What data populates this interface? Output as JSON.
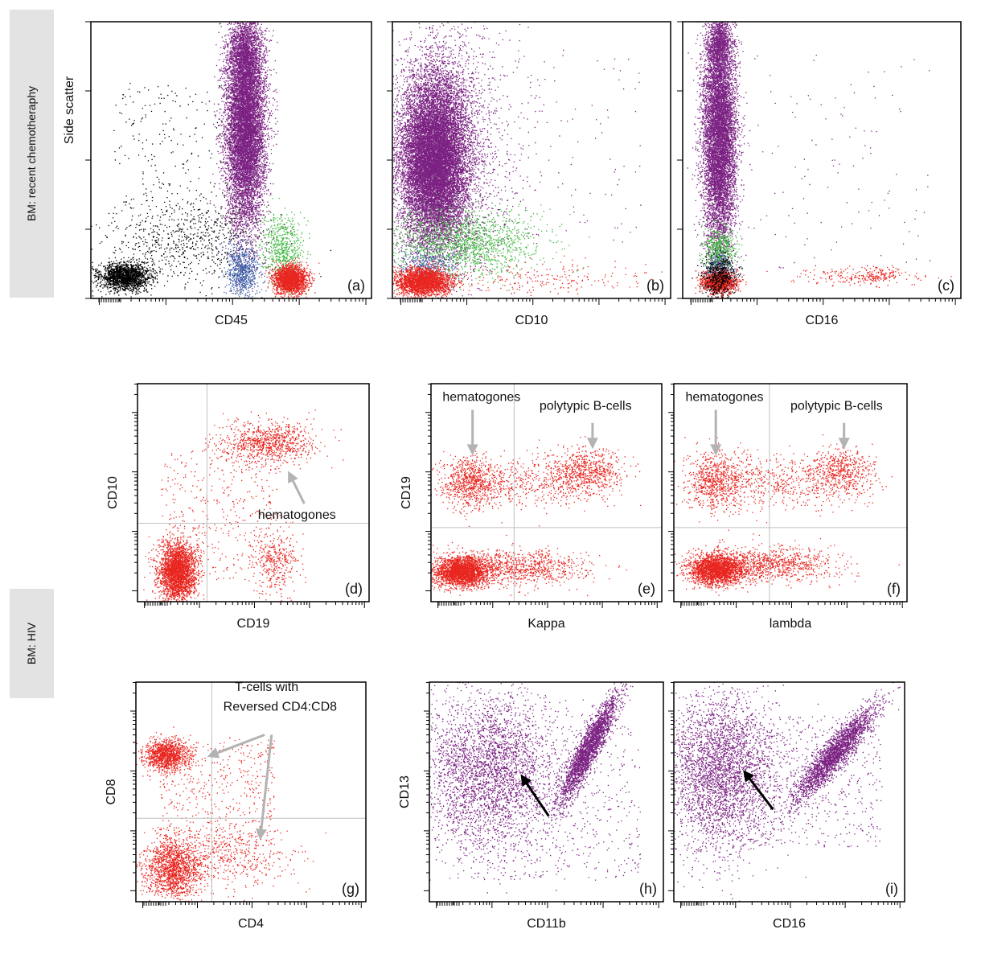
{
  "row_labels": {
    "top": "BM: recent chemotheraphy",
    "bottom": "BM: HIV"
  },
  "colors": {
    "granulocytes": "#7B2182",
    "lymphocytes": "#E8251F",
    "monocytes": "#3FB83F",
    "blasts": "#3D5CA8",
    "debris": "#000000",
    "gate": "#bfbfbf",
    "annotation_arrow": "#b3b3b3"
  },
  "chart_data": [
    {
      "id": "a",
      "type": "scatter",
      "panel_label": "(a)",
      "xlabel": "CD45",
      "ylabel": "Side scatter",
      "x_scale": "log",
      "y_scale": "linear",
      "gates": [],
      "populations": [
        {
          "color": "granulocytes",
          "cx": 0.55,
          "cy": 0.62,
          "sx": 0.035,
          "sy": 0.18,
          "n": 9000,
          "shape": "ellipse"
        },
        {
          "color": "granulocytes",
          "cx": 0.55,
          "cy": 0.88,
          "sx": 0.03,
          "sy": 0.08,
          "n": 1500,
          "shape": "ellipse"
        },
        {
          "color": "debris",
          "cx": 0.12,
          "cy": 0.08,
          "sx": 0.045,
          "sy": 0.025,
          "n": 1800,
          "shape": "ellipse"
        },
        {
          "color": "debris",
          "cx": 0.35,
          "cy": 0.2,
          "sx": 0.15,
          "sy": 0.08,
          "n": 700,
          "shape": "ellipse"
        },
        {
          "color": "debris",
          "cx": 0.3,
          "cy": 0.5,
          "sx": 0.22,
          "sy": 0.28,
          "n": 250,
          "shape": "uniform"
        },
        {
          "color": "blasts",
          "cx": 0.54,
          "cy": 0.1,
          "sx": 0.03,
          "sy": 0.05,
          "n": 700,
          "shape": "ellipse"
        },
        {
          "color": "monocytes",
          "cx": 0.68,
          "cy": 0.18,
          "sx": 0.035,
          "sy": 0.06,
          "n": 600,
          "shape": "ellipse"
        },
        {
          "color": "lymphocytes",
          "cx": 0.71,
          "cy": 0.07,
          "sx": 0.03,
          "sy": 0.025,
          "n": 2000,
          "shape": "ellipse"
        }
      ]
    },
    {
      "id": "b",
      "type": "scatter",
      "panel_label": "(b)",
      "xlabel": "CD10",
      "ylabel": "",
      "x_scale": "log",
      "y_scale": "linear",
      "gates": [],
      "populations": [
        {
          "color": "granulocytes",
          "cx": 0.15,
          "cy": 0.5,
          "sx": 0.06,
          "sy": 0.15,
          "n": 14000,
          "shape": "ellipse"
        },
        {
          "color": "granulocytes",
          "cx": 0.2,
          "cy": 0.55,
          "sx": 0.12,
          "sy": 0.25,
          "n": 2000,
          "shape": "ellipse"
        },
        {
          "color": "monocytes",
          "cx": 0.25,
          "cy": 0.2,
          "sx": 0.14,
          "sy": 0.06,
          "n": 1600,
          "shape": "ellipse"
        },
        {
          "color": "blasts",
          "cx": 0.12,
          "cy": 0.12,
          "sx": 0.05,
          "sy": 0.03,
          "n": 300,
          "shape": "ellipse"
        },
        {
          "color": "lymphocytes",
          "cx": 0.11,
          "cy": 0.06,
          "sx": 0.05,
          "sy": 0.025,
          "n": 2600,
          "shape": "ellipse"
        },
        {
          "color": "lymphocytes",
          "cx": 0.55,
          "cy": 0.07,
          "sx": 0.2,
          "sy": 0.03,
          "n": 220,
          "shape": "ellipse"
        },
        {
          "color": "granulocytes",
          "cx": 0.55,
          "cy": 0.55,
          "sx": 0.35,
          "sy": 0.35,
          "n": 150,
          "shape": "uniform"
        }
      ]
    },
    {
      "id": "c",
      "type": "scatter",
      "panel_label": "(c)",
      "xlabel": "CD16",
      "ylabel": "",
      "x_scale": "log",
      "y_scale": "linear",
      "gates": [],
      "populations": [
        {
          "color": "granulocytes",
          "cx": 0.13,
          "cy": 0.58,
          "sx": 0.03,
          "sy": 0.2,
          "n": 8000,
          "shape": "ellipse"
        },
        {
          "color": "granulocytes",
          "cx": 0.13,
          "cy": 0.92,
          "sx": 0.02,
          "sy": 0.05,
          "n": 900,
          "shape": "ellipse"
        },
        {
          "color": "monocytes",
          "cx": 0.13,
          "cy": 0.18,
          "sx": 0.03,
          "sy": 0.04,
          "n": 500,
          "shape": "ellipse"
        },
        {
          "color": "blasts",
          "cx": 0.13,
          "cy": 0.1,
          "sx": 0.025,
          "sy": 0.03,
          "n": 300,
          "shape": "ellipse"
        },
        {
          "color": "lymphocytes",
          "cx": 0.13,
          "cy": 0.06,
          "sx": 0.03,
          "sy": 0.02,
          "n": 1200,
          "shape": "ellipse"
        },
        {
          "color": "debris",
          "cx": 0.13,
          "cy": 0.08,
          "sx": 0.03,
          "sy": 0.04,
          "n": 500,
          "shape": "ellipse"
        },
        {
          "color": "lymphocytes",
          "cx": 0.63,
          "cy": 0.08,
          "sx": 0.12,
          "sy": 0.015,
          "n": 180,
          "shape": "ellipse"
        },
        {
          "color": "lymphocytes",
          "cx": 0.7,
          "cy": 0.09,
          "sx": 0.03,
          "sy": 0.015,
          "n": 100,
          "shape": "ellipse"
        },
        {
          "color": "granulocytes",
          "cx": 0.55,
          "cy": 0.5,
          "sx": 0.35,
          "sy": 0.4,
          "n": 120,
          "shape": "uniform"
        }
      ]
    },
    {
      "id": "d",
      "type": "scatter",
      "panel_label": "(d)",
      "xlabel": "CD19",
      "ylabel": "CD10",
      "x_scale": "log",
      "y_scale": "log",
      "gates": [
        {
          "x": 0.3
        },
        {
          "y": 0.36
        }
      ],
      "annotations": [
        {
          "text": "hematogones",
          "arrow_to": [
            0.65,
            0.6
          ],
          "arrow_from": [
            0.72,
            0.45
          ],
          "text_at": [
            0.52,
            0.38
          ]
        }
      ],
      "populations": [
        {
          "color": "lymphocytes",
          "cx": 0.17,
          "cy": 0.14,
          "sx": 0.04,
          "sy": 0.07,
          "n": 2800,
          "shape": "ellipse"
        },
        {
          "color": "lymphocytes",
          "cx": 0.57,
          "cy": 0.73,
          "sx": 0.1,
          "sy": 0.05,
          "n": 900,
          "shape": "ellipse"
        },
        {
          "color": "lymphocytes",
          "cx": 0.6,
          "cy": 0.18,
          "sx": 0.05,
          "sy": 0.07,
          "n": 350,
          "shape": "ellipse"
        },
        {
          "color": "lymphocytes",
          "cx": 0.35,
          "cy": 0.4,
          "sx": 0.25,
          "sy": 0.3,
          "n": 450,
          "shape": "uniform"
        }
      ]
    },
    {
      "id": "e",
      "type": "scatter",
      "panel_label": "(e)",
      "xlabel": "Kappa",
      "ylabel": "CD19",
      "x_scale": "log",
      "y_scale": "log",
      "gates": [
        {
          "x": 0.36
        },
        {
          "y": 0.34
        }
      ],
      "annotations": [
        {
          "text": "hematogones",
          "arrow_to": [
            0.18,
            0.67
          ],
          "arrow_from": [
            0.18,
            0.88
          ],
          "text_at": [
            0.05,
            0.92
          ]
        },
        {
          "text": "polytypic B-cells",
          "arrow_to": [
            0.7,
            0.7
          ],
          "arrow_from": [
            0.7,
            0.82
          ],
          "text_at": [
            0.47,
            0.88
          ]
        }
      ],
      "populations": [
        {
          "color": "lymphocytes",
          "cx": 0.13,
          "cy": 0.14,
          "sx": 0.06,
          "sy": 0.035,
          "n": 2500,
          "shape": "ellipse"
        },
        {
          "color": "lymphocytes",
          "cx": 0.38,
          "cy": 0.16,
          "sx": 0.14,
          "sy": 0.04,
          "n": 900,
          "shape": "ellipse"
        },
        {
          "color": "lymphocytes",
          "cx": 0.17,
          "cy": 0.55,
          "sx": 0.06,
          "sy": 0.06,
          "n": 700,
          "shape": "ellipse"
        },
        {
          "color": "lymphocytes",
          "cx": 0.67,
          "cy": 0.6,
          "sx": 0.08,
          "sy": 0.05,
          "n": 600,
          "shape": "ellipse"
        },
        {
          "color": "lymphocytes",
          "cx": 0.42,
          "cy": 0.55,
          "sx": 0.18,
          "sy": 0.06,
          "n": 600,
          "shape": "ellipse"
        }
      ]
    },
    {
      "id": "f",
      "type": "scatter",
      "panel_label": "(f)",
      "xlabel": "lambda",
      "ylabel": "",
      "x_scale": "log",
      "y_scale": "log",
      "gates": [
        {
          "x": 0.41
        },
        {
          "y": 0.34
        }
      ],
      "annotations": [
        {
          "text": "hematogones",
          "arrow_to": [
            0.18,
            0.67
          ],
          "arrow_from": [
            0.18,
            0.88
          ],
          "text_at": [
            0.05,
            0.92
          ]
        },
        {
          "text": "polytypic B-cells",
          "arrow_to": [
            0.73,
            0.7
          ],
          "arrow_from": [
            0.73,
            0.82
          ],
          "text_at": [
            0.5,
            0.88
          ]
        }
      ],
      "populations": [
        {
          "color": "lymphocytes",
          "cx": 0.18,
          "cy": 0.15,
          "sx": 0.06,
          "sy": 0.035,
          "n": 2300,
          "shape": "ellipse"
        },
        {
          "color": "lymphocytes",
          "cx": 0.42,
          "cy": 0.17,
          "sx": 0.14,
          "sy": 0.04,
          "n": 900,
          "shape": "ellipse"
        },
        {
          "color": "lymphocytes",
          "cx": 0.18,
          "cy": 0.56,
          "sx": 0.06,
          "sy": 0.07,
          "n": 700,
          "shape": "ellipse"
        },
        {
          "color": "lymphocytes",
          "cx": 0.72,
          "cy": 0.6,
          "sx": 0.07,
          "sy": 0.05,
          "n": 500,
          "shape": "ellipse"
        },
        {
          "color": "lymphocytes",
          "cx": 0.45,
          "cy": 0.55,
          "sx": 0.18,
          "sy": 0.06,
          "n": 600,
          "shape": "ellipse"
        }
      ]
    },
    {
      "id": "g",
      "type": "scatter",
      "panel_label": "(g)",
      "xlabel": "CD4",
      "ylabel": "CD8",
      "x_scale": "log",
      "y_scale": "log",
      "gates": [
        {
          "x": 0.33
        },
        {
          "y": 0.38
        }
      ],
      "annotations": [
        {
          "text": "T-cells with",
          "text_at": [
            0.43,
            0.96
          ]
        },
        {
          "text": "Reversed CD4:CD8",
          "text_at": [
            0.38,
            0.87
          ]
        },
        {
          "text": "",
          "arrow_to": [
            0.31,
            0.66
          ],
          "arrow_from": [
            0.56,
            0.76
          ]
        },
        {
          "text": "",
          "arrow_to": [
            0.54,
            0.28
          ],
          "arrow_from": [
            0.59,
            0.76
          ]
        }
      ],
      "populations": [
        {
          "color": "lymphocytes",
          "cx": 0.13,
          "cy": 0.67,
          "sx": 0.05,
          "sy": 0.035,
          "n": 1200,
          "shape": "ellipse"
        },
        {
          "color": "lymphocytes",
          "cx": 0.16,
          "cy": 0.15,
          "sx": 0.06,
          "sy": 0.07,
          "n": 1500,
          "shape": "ellipse"
        },
        {
          "color": "lymphocytes",
          "cx": 0.4,
          "cy": 0.2,
          "sx": 0.15,
          "sy": 0.07,
          "n": 500,
          "shape": "ellipse"
        },
        {
          "color": "lymphocytes",
          "cx": 0.35,
          "cy": 0.5,
          "sx": 0.25,
          "sy": 0.25,
          "n": 500,
          "shape": "uniform"
        }
      ]
    },
    {
      "id": "h",
      "type": "scatter",
      "panel_label": "(h)",
      "xlabel": "CD11b",
      "ylabel": "CD13",
      "x_scale": "log",
      "y_scale": "log",
      "gates": [],
      "annotations": [
        {
          "text": "",
          "arrow_to": [
            0.39,
            0.58
          ],
          "arrow_from": [
            0.51,
            0.39
          ],
          "color": "black"
        }
      ],
      "populations": [
        {
          "color": "granulocytes",
          "cx": 0.25,
          "cy": 0.6,
          "sx": 0.15,
          "sy": 0.18,
          "n": 3200,
          "shape": "ellipse"
        },
        {
          "color": "granulocytes",
          "cx": 0.68,
          "cy": 0.7,
          "sx": 0.06,
          "sy": 0.12,
          "n": 2500,
          "shape": "diag"
        },
        {
          "color": "granulocytes",
          "cx": 0.5,
          "cy": 0.45,
          "sx": 0.4,
          "sy": 0.35,
          "n": 600,
          "shape": "uniform"
        }
      ]
    },
    {
      "id": "i",
      "type": "scatter",
      "panel_label": "(i)",
      "xlabel": "CD16",
      "ylabel": "",
      "x_scale": "log",
      "y_scale": "log",
      "gates": [],
      "annotations": [
        {
          "text": "",
          "arrow_to": [
            0.3,
            0.6
          ],
          "arrow_from": [
            0.43,
            0.42
          ],
          "color": "black"
        }
      ],
      "populations": [
        {
          "color": "granulocytes",
          "cx": 0.2,
          "cy": 0.6,
          "sx": 0.12,
          "sy": 0.18,
          "n": 3200,
          "shape": "ellipse"
        },
        {
          "color": "granulocytes",
          "cx": 0.7,
          "cy": 0.68,
          "sx": 0.08,
          "sy": 0.1,
          "n": 2500,
          "shape": "diag"
        },
        {
          "color": "granulocytes",
          "cx": 0.5,
          "cy": 0.55,
          "sx": 0.4,
          "sy": 0.3,
          "n": 700,
          "shape": "uniform"
        }
      ]
    }
  ]
}
